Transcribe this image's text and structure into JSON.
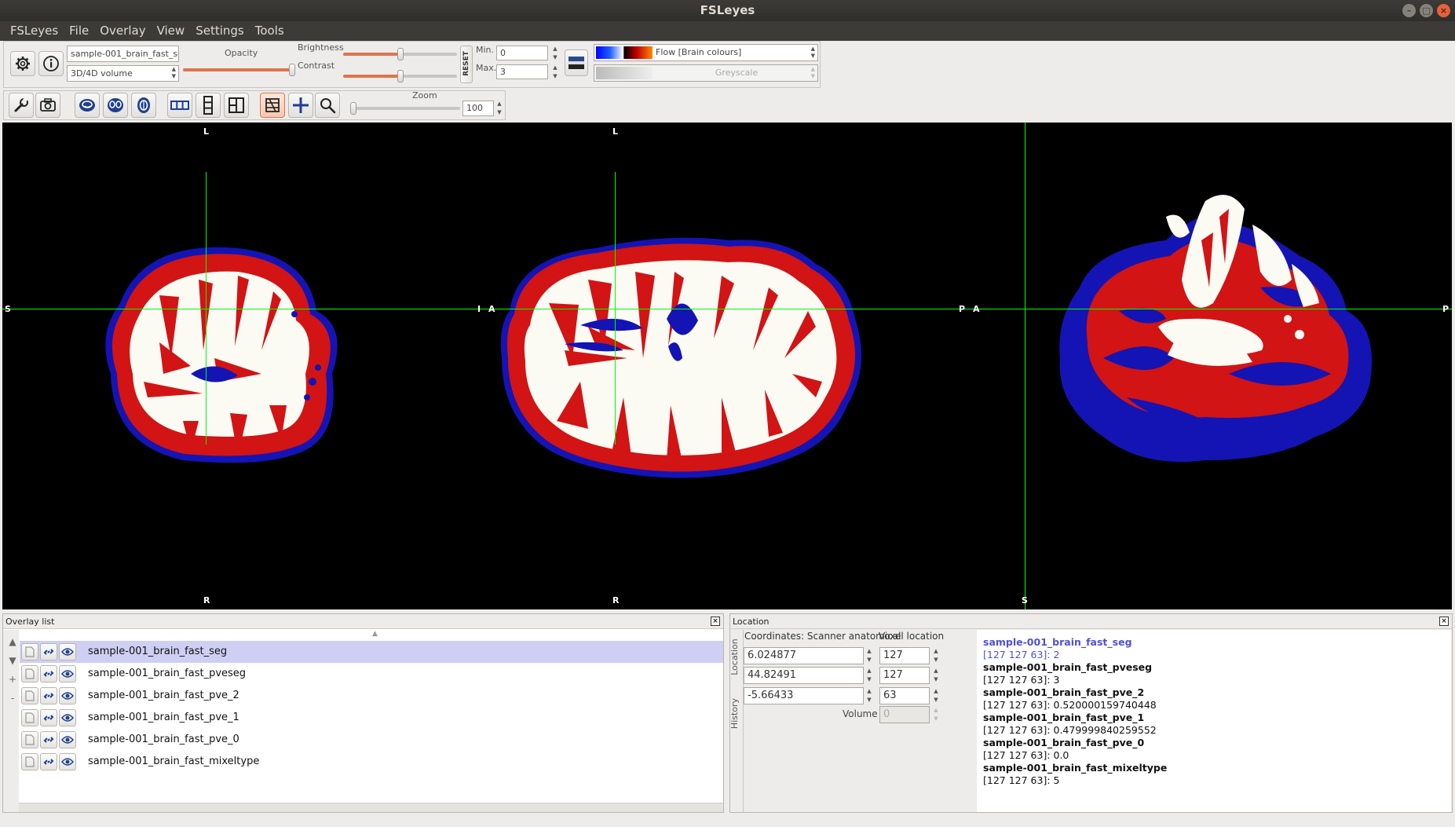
{
  "window": {
    "title": "FSLeyes"
  },
  "menubar": [
    "FSLeyes",
    "File",
    "Overlay",
    "View",
    "Settings",
    "Tools"
  ],
  "overlay_toolbar": {
    "overlay_name": "sample-001_brain_fast_seg",
    "overlay_type": "3D/4D volume",
    "opacity_label": "Opacity",
    "opacity": 1.0,
    "brightness_label": "Brightness",
    "brightness": 0.5,
    "contrast_label": "Contrast",
    "contrast": 0.5,
    "reset_label": "RESET",
    "min_label": "Min.",
    "min_value": "0",
    "max_label": "Max.",
    "max_value": "3",
    "colormap": "Flow [Brain colours]",
    "neg_colormap": "Greyscale"
  },
  "view_toolbar": {
    "zoom_label": "Zoom",
    "zoom_value": "100",
    "zoom": 0.0
  },
  "orientation": {
    "sagittal": {
      "top": "L",
      "bottom": "R",
      "left": "S",
      "right": "I"
    },
    "coronal": {
      "top": "L",
      "bottom": "R",
      "left": "A",
      "right": "P"
    },
    "axial": {
      "left": "A",
      "right": "P",
      "bottom": "S"
    }
  },
  "overlay_list": {
    "title": "Overlay list",
    "items": [
      {
        "name": "sample-001_brain_fast_seg",
        "selected": true
      },
      {
        "name": "sample-001_brain_fast_pveseg",
        "selected": false
      },
      {
        "name": "sample-001_brain_fast_pve_2",
        "selected": false
      },
      {
        "name": "sample-001_brain_fast_pve_1",
        "selected": false
      },
      {
        "name": "sample-001_brain_fast_pve_0",
        "selected": false
      },
      {
        "name": "sample-001_brain_fast_mixeltype",
        "selected": false
      }
    ]
  },
  "location": {
    "title": "Location",
    "tabs": [
      "Location",
      "History"
    ],
    "coords_label": "Coordinates: Scanner anatomical",
    "coords": [
      "6.024877",
      "44.82491",
      "-5.66433"
    ],
    "voxel_label": "Voxel location",
    "voxels": [
      "127",
      "127",
      "63"
    ],
    "volume_label": "Volume",
    "volume_value": "0",
    "info": [
      {
        "name": "sample-001_brain_fast_seg",
        "value": "[127 127 63]: 2",
        "selected": true
      },
      {
        "name": "sample-001_brain_fast_pveseg",
        "value": "[127 127 63]: 3",
        "selected": false
      },
      {
        "name": "sample-001_brain_fast_pve_2",
        "value": "[127 127 63]: 0.520000159740448",
        "selected": false
      },
      {
        "name": "sample-001_brain_fast_pve_1",
        "value": "[127 127 63]: 0.479999840259552",
        "selected": false
      },
      {
        "name": "sample-001_brain_fast_pve_0",
        "value": "[127 127 63]: 0.0",
        "selected": false
      },
      {
        "name": "sample-001_brain_fast_mixeltype",
        "value": "[127 127 63]: 5",
        "selected": false
      }
    ]
  },
  "colors": {
    "crosshair": "#00ff00",
    "csf": "#1414b4",
    "gray_matter": "#d21414",
    "white_matter": "#fbfbf4",
    "selected_row": "#cfcff3",
    "accent": "#e0744a"
  }
}
